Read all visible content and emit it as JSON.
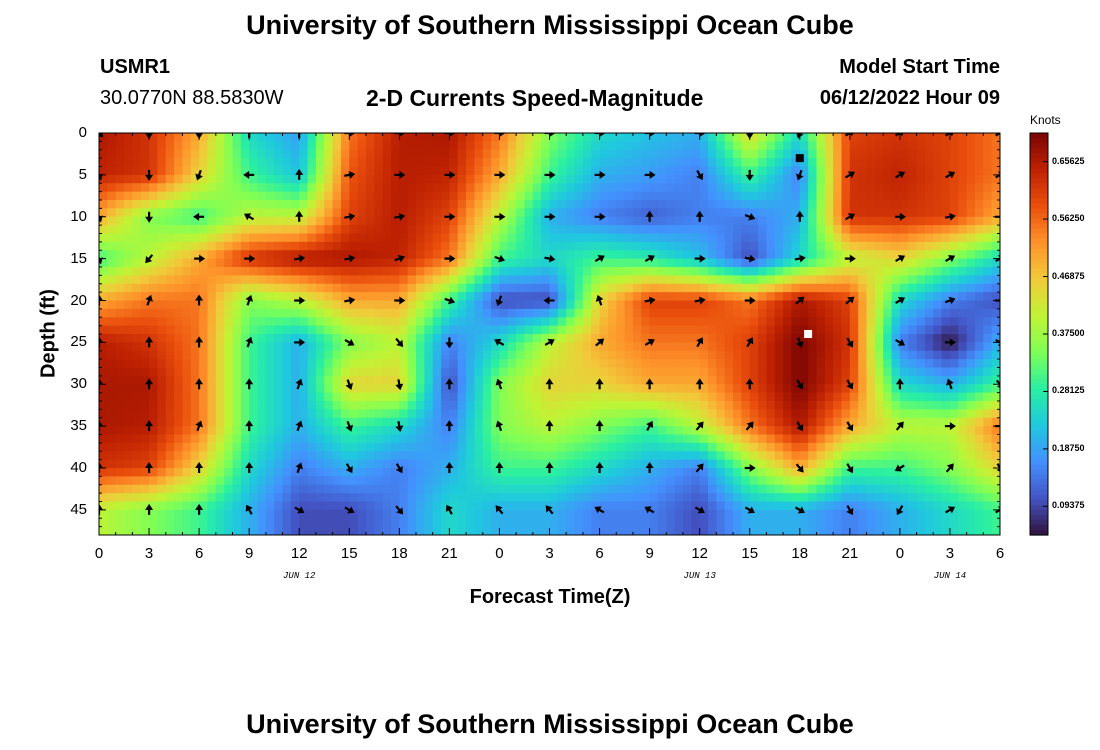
{
  "page": {
    "title": "University of Southern Mississippi Ocean Cube",
    "station": "USMR1",
    "location": "30.0770N  88.5830W",
    "subtitle": "2-D Currents Speed-Magnitude",
    "model_label": "Model Start Time",
    "model_time": "06/12/2022 Hour 09",
    "bottom_title": "University of Southern Mississippi Ocean Cube"
  },
  "chart_data": {
    "type": "heatmap",
    "xlabel": "Forecast Time(Z)",
    "ylabel": "Depth (ft)",
    "x_hours": [
      0,
      54
    ],
    "x_tick_labels": [
      "0",
      "3",
      "6",
      "9",
      "12",
      "15",
      "18",
      "21",
      "0",
      "3",
      "6",
      "9",
      "12",
      "15",
      "18",
      "21",
      "0",
      "3",
      "6"
    ],
    "date_labels": [
      {
        "text": "JUN 12",
        "hour": 12
      },
      {
        "text": "JUN 13",
        "hour": 36
      },
      {
        "text": "JUN 14",
        "hour": 51
      }
    ],
    "y_range": [
      0,
      48
    ],
    "y_ticks": [
      0,
      5,
      10,
      15,
      20,
      25,
      30,
      35,
      40,
      45
    ],
    "y_inverted": true,
    "colorbar": {
      "units": "Knots",
      "range": [
        0.047,
        0.703
      ],
      "ticks": [
        "0.65625",
        "0.56250",
        "0.46875",
        "0.37500",
        "0.28125",
        "0.18750",
        "0.09375"
      ],
      "colors": [
        "#30123b",
        "#4454c4",
        "#4490fe",
        "#1fc8de",
        "#29efa2",
        "#7eff56",
        "#c1f334",
        "#f1ca3a",
        "#fe922a",
        "#ea4f0d",
        "#be2102",
        "#7a0403"
      ]
    },
    "grid_depths": [
      0,
      5,
      10,
      15,
      20,
      25,
      30,
      35,
      40,
      45
    ],
    "grid_hours": [
      0,
      3,
      6,
      9,
      12,
      15,
      18,
      21,
      24,
      27,
      30,
      33,
      36,
      39,
      42,
      45,
      48,
      51,
      54
    ],
    "speed": [
      [
        0.66,
        0.62,
        0.5,
        0.25,
        0.18,
        0.55,
        0.65,
        0.66,
        0.55,
        0.35,
        0.25,
        0.22,
        0.2,
        0.45,
        0.25,
        0.6,
        0.62,
        0.6,
        0.55
      ],
      [
        0.64,
        0.62,
        0.45,
        0.3,
        0.22,
        0.58,
        0.65,
        0.64,
        0.5,
        0.3,
        0.2,
        0.18,
        0.15,
        0.3,
        0.15,
        0.62,
        0.64,
        0.6,
        0.55
      ],
      [
        0.5,
        0.35,
        0.3,
        0.4,
        0.4,
        0.6,
        0.65,
        0.6,
        0.4,
        0.2,
        0.15,
        0.12,
        0.15,
        0.15,
        0.2,
        0.62,
        0.62,
        0.6,
        0.5
      ],
      [
        0.3,
        0.4,
        0.5,
        0.62,
        0.66,
        0.66,
        0.64,
        0.55,
        0.3,
        0.25,
        0.3,
        0.28,
        0.22,
        0.1,
        0.25,
        0.4,
        0.45,
        0.35,
        0.25
      ],
      [
        0.5,
        0.55,
        0.55,
        0.35,
        0.4,
        0.5,
        0.5,
        0.3,
        0.1,
        0.1,
        0.45,
        0.6,
        0.6,
        0.55,
        0.66,
        0.6,
        0.25,
        0.15,
        0.1
      ],
      [
        0.65,
        0.62,
        0.55,
        0.3,
        0.2,
        0.35,
        0.4,
        0.15,
        0.25,
        0.4,
        0.5,
        0.55,
        0.55,
        0.6,
        0.7,
        0.62,
        0.15,
        0.05,
        0.2
      ],
      [
        0.66,
        0.66,
        0.55,
        0.3,
        0.2,
        0.45,
        0.45,
        0.1,
        0.35,
        0.45,
        0.45,
        0.5,
        0.5,
        0.6,
        0.7,
        0.6,
        0.25,
        0.2,
        0.3
      ],
      [
        0.66,
        0.65,
        0.55,
        0.3,
        0.2,
        0.3,
        0.25,
        0.15,
        0.35,
        0.4,
        0.35,
        0.3,
        0.4,
        0.55,
        0.66,
        0.5,
        0.4,
        0.4,
        0.55
      ],
      [
        0.62,
        0.6,
        0.45,
        0.25,
        0.15,
        0.2,
        0.15,
        0.2,
        0.3,
        0.3,
        0.25,
        0.2,
        0.15,
        0.35,
        0.5,
        0.3,
        0.3,
        0.35,
        0.45
      ],
      [
        0.4,
        0.35,
        0.3,
        0.2,
        0.1,
        0.1,
        0.15,
        0.25,
        0.2,
        0.2,
        0.15,
        0.15,
        0.1,
        0.2,
        0.2,
        0.15,
        0.2,
        0.25,
        0.3
      ]
    ],
    "direction_deg": [
      [
        135,
        180,
        180,
        0,
        0,
        90,
        90,
        90,
        90,
        90,
        90,
        90,
        90,
        180,
        200,
        60,
        60,
        60,
        60
      ],
      [
        160,
        180,
        200,
        270,
        0,
        80,
        90,
        90,
        90,
        90,
        90,
        90,
        150,
        180,
        200,
        60,
        60,
        60,
        60
      ],
      [
        160,
        180,
        270,
        300,
        0,
        80,
        80,
        90,
        90,
        90,
        90,
        0,
        0,
        110,
        0,
        60,
        90,
        80,
        90
      ],
      [
        160,
        220,
        90,
        90,
        80,
        80,
        70,
        90,
        110,
        100,
        60,
        60,
        90,
        100,
        80,
        90,
        60,
        60,
        60
      ],
      [
        0,
        20,
        0,
        20,
        90,
        80,
        90,
        110,
        200,
        270,
        340,
        80,
        80,
        90,
        50,
        50,
        60,
        70,
        90
      ],
      [
        0,
        0,
        0,
        20,
        90,
        120,
        140,
        180,
        300,
        60,
        50,
        60,
        30,
        30,
        160,
        150,
        120,
        90,
        120
      ],
      [
        0,
        0,
        0,
        0,
        20,
        160,
        170,
        0,
        340,
        0,
        0,
        0,
        0,
        0,
        150,
        150,
        0,
        340,
        140
      ],
      [
        0,
        0,
        20,
        0,
        20,
        160,
        170,
        0,
        340,
        0,
        0,
        30,
        40,
        40,
        150,
        150,
        40,
        90,
        90
      ],
      [
        0,
        0,
        0,
        0,
        20,
        150,
        150,
        0,
        0,
        0,
        0,
        0,
        40,
        90,
        140,
        150,
        240,
        40,
        150
      ],
      [
        0,
        0,
        0,
        330,
        120,
        120,
        140,
        330,
        320,
        320,
        300,
        300,
        120,
        120,
        120,
        150,
        210,
        60,
        60
      ]
    ],
    "markers": [
      {
        "hour": 42,
        "depth": 3,
        "color": "#000000"
      },
      {
        "hour": 42.5,
        "depth": 24,
        "color": "#ffffff"
      }
    ]
  }
}
